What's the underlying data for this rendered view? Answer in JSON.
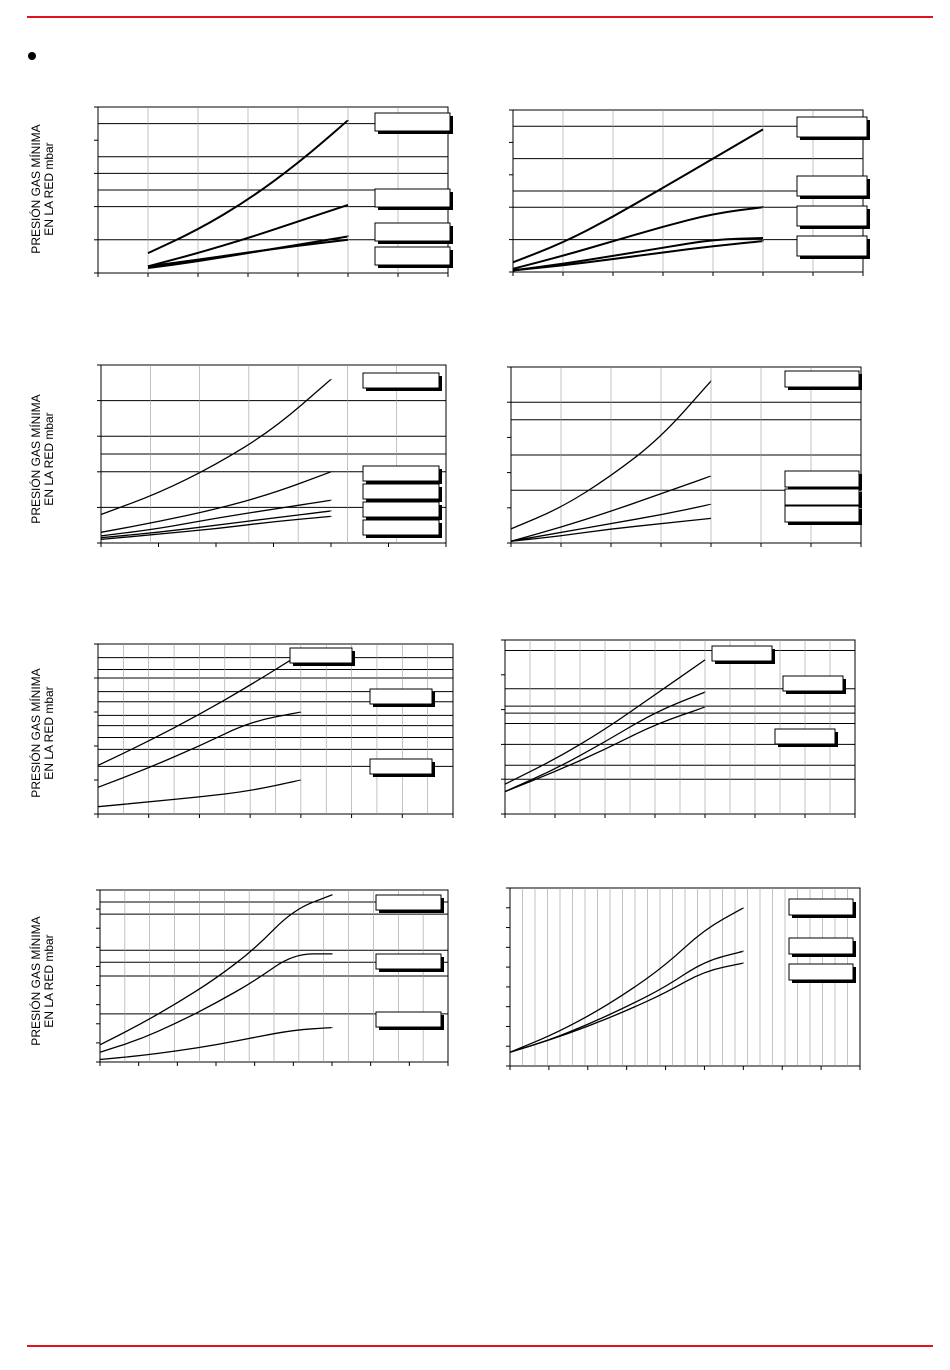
{
  "page": {
    "bullet_text": "",
    "y_axis_label_line1": "PRESIÓN GAS MÍNIMA",
    "y_axis_label_line2": "EN LA RED mbar"
  },
  "colors": {
    "rule": "#e0141e",
    "line": "#000000",
    "grid": "#000000",
    "minor_grid": "#9a9a9a"
  },
  "chart_data": [
    {
      "type": "line",
      "ylim": [
        0,
        5
      ],
      "x": [
        0,
        1,
        2,
        3,
        4,
        5,
        6,
        7
      ],
      "series": [
        {
          "values": [
            null,
            0.6,
            1.3,
            2.2,
            3.3,
            4.6,
            null,
            null
          ]
        },
        {
          "values": [
            null,
            0.2,
            0.6,
            1.05,
            1.55,
            2.05,
            null,
            null
          ]
        },
        {
          "values": [
            null,
            0.15,
            0.35,
            0.6,
            0.85,
            1.1,
            null,
            null
          ]
        },
        {
          "values": [
            null,
            0.2,
            0.4,
            0.62,
            0.82,
            1.0,
            null,
            null
          ]
        }
      ],
      "legend_boxes": 4
    },
    {
      "type": "line",
      "ylim": [
        0,
        5
      ],
      "x": [
        0,
        1,
        2,
        3,
        4,
        5,
        6,
        7
      ],
      "series": [
        {
          "values": [
            0.3,
            0.9,
            1.7,
            2.6,
            3.5,
            4.4,
            null,
            null
          ]
        },
        {
          "values": [
            0.1,
            0.5,
            0.95,
            1.4,
            1.8,
            2.0,
            null,
            null
          ]
        },
        {
          "values": [
            0.05,
            0.25,
            0.5,
            0.75,
            1.0,
            1.05,
            null,
            null
          ]
        },
        {
          "values": [
            0.05,
            0.2,
            0.4,
            0.6,
            0.8,
            0.95,
            null,
            null
          ]
        }
      ],
      "legend_boxes": 4
    },
    {
      "type": "line",
      "ylim": [
        0,
        5
      ],
      "x": [
        0,
        1,
        2,
        3,
        4,
        5,
        6
      ],
      "series": [
        {
          "values": [
            0.8,
            1.4,
            2.2,
            3.2,
            4.6,
            null,
            null
          ]
        },
        {
          "values": [
            0.3,
            0.6,
            0.95,
            1.4,
            2.0,
            null,
            null
          ]
        },
        {
          "values": [
            0.2,
            0.4,
            0.7,
            0.95,
            1.2,
            null,
            null
          ]
        },
        {
          "values": [
            0.15,
            0.3,
            0.5,
            0.7,
            0.9,
            null,
            null
          ]
        },
        {
          "values": [
            0.1,
            0.25,
            0.4,
            0.6,
            0.75,
            null,
            null
          ]
        }
      ],
      "legend_boxes": 5
    },
    {
      "type": "line",
      "ylim": [
        0,
        5
      ],
      "x": [
        0,
        1,
        2,
        3,
        4,
        5,
        6,
        7
      ],
      "series": [
        {
          "values": [
            0.4,
            1.0,
            1.9,
            3.0,
            4.6,
            null,
            null,
            null
          ]
        },
        {
          "values": [
            0.05,
            0.45,
            0.9,
            1.4,
            1.9,
            null,
            null,
            null
          ]
        },
        {
          "values": [
            0.05,
            0.3,
            0.55,
            0.8,
            1.1,
            null,
            null,
            null
          ]
        },
        {
          "values": [
            0.05,
            0.2,
            0.4,
            0.55,
            0.7,
            null,
            null,
            null
          ]
        }
      ],
      "legend_boxes": 4
    },
    {
      "type": "line",
      "ylim": [
        0,
        7
      ],
      "x": [
        0,
        1,
        2,
        3,
        4,
        5,
        6,
        7
      ],
      "series": [
        {
          "values": [
            2.0,
            3.0,
            4.1,
            5.3,
            6.6,
            null,
            null,
            null
          ]
        },
        {
          "values": [
            1.1,
            1.9,
            2.8,
            3.8,
            4.2,
            null,
            null,
            null
          ]
        },
        {
          "values": [
            0.3,
            0.5,
            0.7,
            0.95,
            1.4,
            null,
            null,
            null
          ]
        }
      ],
      "legend_boxes": 3
    },
    {
      "type": "line",
      "ylim": [
        0,
        7
      ],
      "x": [
        0,
        1,
        2,
        3,
        4,
        5,
        6,
        7
      ],
      "series": [
        {
          "values": [
            1.2,
            2.2,
            3.4,
            4.8,
            6.2,
            null,
            null,
            null
          ]
        },
        {
          "values": [
            0.9,
            1.8,
            2.9,
            4.1,
            4.9,
            null,
            null,
            null
          ]
        },
        {
          "values": [
            0.9,
            1.7,
            2.6,
            3.6,
            4.3,
            null,
            null,
            null
          ]
        }
      ],
      "legend_boxes": 3
    },
    {
      "type": "line",
      "ylim": [
        0,
        7
      ],
      "x": [
        0,
        1,
        2,
        3,
        4,
        5,
        6,
        7,
        8,
        9
      ],
      "series": [
        {
          "values": [
            0.7,
            1.5,
            2.4,
            3.4,
            4.6,
            6.2,
            6.8,
            null,
            null,
            null
          ]
        },
        {
          "values": [
            0.4,
            0.9,
            1.6,
            2.4,
            3.3,
            4.4,
            4.4,
            null,
            null,
            null
          ]
        },
        {
          "values": [
            0.1,
            0.25,
            0.45,
            0.7,
            1.0,
            1.3,
            1.4,
            null,
            null,
            null
          ]
        }
      ],
      "legend_boxes": 3
    },
    {
      "type": "line",
      "ylim": [
        0,
        9
      ],
      "x": [
        0,
        1,
        2,
        3,
        4,
        5,
        6,
        7,
        8,
        9
      ],
      "series": [
        {
          "values": [
            0.7,
            1.5,
            2.5,
            3.7,
            5.1,
            6.9,
            8.0,
            null,
            null,
            null
          ]
        },
        {
          "values": [
            0.7,
            1.3,
            2.1,
            3.0,
            4.0,
            5.3,
            5.8,
            null,
            null,
            null
          ]
        },
        {
          "values": [
            0.7,
            1.3,
            2.0,
            2.8,
            3.7,
            4.8,
            5.2,
            null,
            null,
            null
          ]
        }
      ],
      "legend_boxes": 3
    }
  ]
}
